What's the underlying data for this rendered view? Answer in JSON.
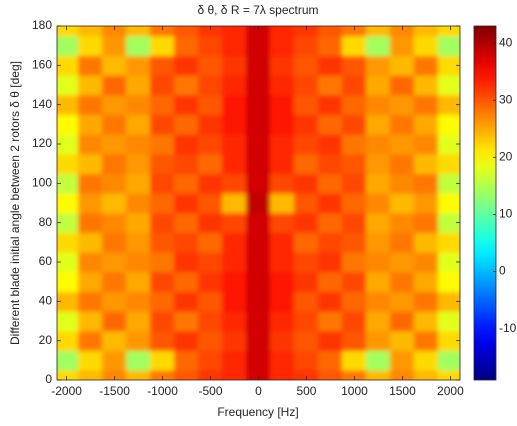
{
  "chart_data": {
    "type": "heatmap",
    "title": "δ θ, δ R = 7λ spectrum",
    "x_label": "Frequency [Hz]",
    "y_label": "Different blade initial angle between 2 rotors δ θ [deg]",
    "x": [
      -2000,
      -1750,
      -1500,
      -1250,
      -1000,
      -750,
      -500,
      -250,
      0,
      250,
      500,
      750,
      1000,
      1250,
      1500,
      1750,
      2000
    ],
    "y": [
      0,
      10,
      20,
      30,
      40,
      50,
      60,
      70,
      80,
      90,
      100,
      110,
      120,
      130,
      140,
      150,
      160,
      170,
      180
    ],
    "z": [
      [
        22,
        24,
        27,
        24,
        28,
        30,
        32,
        33,
        38,
        33,
        32,
        30,
        28,
        24,
        27,
        24,
        22
      ],
      [
        14,
        22,
        26,
        14,
        22,
        29,
        31,
        33,
        38,
        33,
        31,
        29,
        22,
        14,
        26,
        22,
        14
      ],
      [
        22,
        28,
        24,
        26,
        30,
        32,
        30,
        32,
        38,
        32,
        30,
        32,
        30,
        26,
        24,
        28,
        22
      ],
      [
        18,
        24,
        29,
        25,
        31,
        28,
        31,
        33,
        38,
        33,
        31,
        28,
        31,
        25,
        29,
        24,
        18
      ],
      [
        24,
        28,
        26,
        27,
        29,
        32,
        30,
        34,
        38,
        34,
        30,
        32,
        29,
        27,
        26,
        28,
        24
      ],
      [
        20,
        25,
        28,
        25,
        31,
        29,
        32,
        34,
        38,
        34,
        32,
        29,
        31,
        25,
        28,
        25,
        20
      ],
      [
        18,
        27,
        26,
        27,
        28,
        32,
        31,
        33,
        38,
        33,
        31,
        32,
        28,
        27,
        26,
        27,
        18
      ],
      [
        22,
        24,
        28,
        26,
        30,
        31,
        29,
        33,
        38,
        33,
        29,
        31,
        30,
        26,
        28,
        24,
        22
      ],
      [
        16,
        28,
        27,
        25,
        31,
        29,
        32,
        31,
        38,
        31,
        32,
        29,
        31,
        25,
        27,
        28,
        16
      ],
      [
        20,
        26,
        24,
        27,
        29,
        32,
        30,
        24,
        39,
        24,
        30,
        32,
        29,
        27,
        24,
        26,
        20
      ],
      [
        16,
        28,
        27,
        25,
        31,
        29,
        32,
        31,
        38,
        31,
        32,
        29,
        31,
        25,
        27,
        28,
        16
      ],
      [
        22,
        24,
        28,
        26,
        30,
        31,
        29,
        33,
        38,
        33,
        29,
        31,
        30,
        26,
        28,
        24,
        22
      ],
      [
        18,
        27,
        26,
        27,
        28,
        32,
        31,
        33,
        38,
        33,
        31,
        32,
        28,
        27,
        26,
        27,
        18
      ],
      [
        20,
        25,
        28,
        25,
        31,
        29,
        32,
        34,
        38,
        34,
        32,
        29,
        31,
        25,
        28,
        25,
        20
      ],
      [
        24,
        28,
        26,
        27,
        29,
        32,
        30,
        34,
        38,
        34,
        30,
        32,
        29,
        27,
        26,
        28,
        24
      ],
      [
        18,
        24,
        29,
        25,
        31,
        28,
        31,
        33,
        38,
        33,
        31,
        28,
        31,
        25,
        29,
        24,
        18
      ],
      [
        22,
        28,
        24,
        26,
        30,
        32,
        30,
        32,
        38,
        32,
        30,
        32,
        30,
        26,
        24,
        28,
        22
      ],
      [
        14,
        22,
        26,
        14,
        22,
        29,
        31,
        33,
        38,
        33,
        31,
        29,
        22,
        14,
        26,
        22,
        14
      ],
      [
        22,
        24,
        27,
        24,
        28,
        30,
        32,
        33,
        38,
        33,
        32,
        30,
        28,
        24,
        27,
        24,
        22
      ]
    ],
    "xlim": [
      -2100,
      2100
    ],
    "xticks": [
      -2000,
      -1500,
      -1000,
      -500,
      0,
      500,
      1000,
      1500,
      2000
    ],
    "ylim": [
      0,
      180
    ],
    "yticks": [
      0,
      20,
      40,
      60,
      80,
      100,
      120,
      140,
      160,
      180
    ],
    "clim": [
      -19,
      43
    ],
    "cticks": [
      -10,
      0,
      10,
      20,
      30,
      40
    ],
    "colormap": "jet"
  }
}
